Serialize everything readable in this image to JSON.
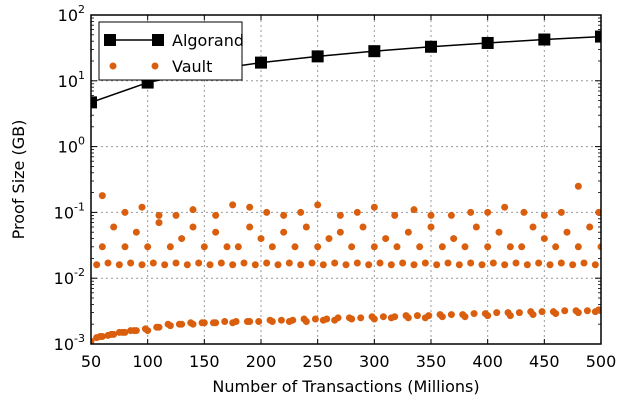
{
  "chart_data": {
    "type": "scatter",
    "xlabel": "Number of Transactions (Millions)",
    "ylabel": "Proof Size (GB)",
    "xlim": [
      50,
      500
    ],
    "ylim": [
      0.001,
      100
    ],
    "yscale": "log",
    "grid": true,
    "legend_position": "top-left",
    "x_ticks": [
      50,
      100,
      150,
      200,
      250,
      300,
      350,
      400,
      450,
      500
    ],
    "y_ticks": [
      {
        "value": 0.001,
        "base": "10",
        "exp": "-3"
      },
      {
        "value": 0.01,
        "base": "10",
        "exp": "-2"
      },
      {
        "value": 0.1,
        "base": "10",
        "exp": "-1"
      },
      {
        "value": 1,
        "base": "10",
        "exp": "0"
      },
      {
        "value": 10,
        "base": "10",
        "exp": "1"
      },
      {
        "value": 100,
        "base": "10",
        "exp": "2"
      }
    ],
    "series": [
      {
        "name": "Algorand",
        "style": "line-square",
        "color": "#000000",
        "x": [
          50,
          100,
          150,
          200,
          250,
          300,
          350,
          400,
          450,
          500
        ],
        "values": [
          4.7,
          9.4,
          14.2,
          18.9,
          23.5,
          28.2,
          32.9,
          37.6,
          42.4,
          47.0
        ]
      },
      {
        "name": "Vault",
        "style": "dots",
        "color": "#d95f0e",
        "x": [
          50,
          55,
          60,
          65,
          70,
          75,
          80,
          85,
          90,
          100,
          110,
          120,
          130,
          140,
          150,
          160,
          175,
          190,
          210,
          225,
          240,
          255,
          265,
          280,
          300,
          315,
          330,
          345,
          360,
          380,
          400,
          420,
          440,
          460,
          480,
          495,
          500,
          58,
          68,
          78,
          88,
          98,
          108,
          118,
          128,
          138,
          148,
          158,
          168,
          178,
          188,
          198,
          208,
          218,
          228,
          238,
          248,
          258,
          268,
          278,
          288,
          298,
          308,
          318,
          328,
          338,
          348,
          358,
          368,
          378,
          388,
          398,
          408,
          418,
          428,
          438,
          448,
          458,
          468,
          478,
          488,
          498,
          55,
          65,
          75,
          85,
          95,
          105,
          115,
          125,
          135,
          145,
          155,
          165,
          175,
          185,
          195,
          205,
          215,
          225,
          235,
          245,
          255,
          265,
          275,
          285,
          295,
          305,
          315,
          325,
          335,
          345,
          355,
          365,
          375,
          385,
          395,
          405,
          415,
          425,
          435,
          445,
          455,
          465,
          475,
          485,
          495,
          60,
          70,
          80,
          90,
          100,
          110,
          120,
          130,
          140,
          150,
          160,
          170,
          180,
          190,
          200,
          210,
          220,
          230,
          240,
          250,
          260,
          270,
          280,
          290,
          300,
          310,
          320,
          330,
          340,
          350,
          360,
          370,
          380,
          390,
          400,
          410,
          420,
          430,
          440,
          450,
          460,
          470,
          480,
          490,
          500,
          60,
          80,
          95,
          110,
          125,
          140,
          160,
          175,
          190,
          205,
          220,
          235,
          250,
          270,
          285,
          300,
          318,
          335,
          350,
          368,
          385,
          400,
          415,
          432,
          450,
          465,
          480,
          498
        ],
        "values": [
          0.0011,
          0.00125,
          0.0013,
          0.00135,
          0.0014,
          0.0015,
          0.0015,
          0.0016,
          0.0016,
          0.0016,
          0.0018,
          0.0019,
          0.002,
          0.002,
          0.0021,
          0.0021,
          0.0021,
          0.0022,
          0.0022,
          0.0022,
          0.0022,
          0.0023,
          0.0023,
          0.0024,
          0.0024,
          0.0025,
          0.0025,
          0.0025,
          0.0026,
          0.0026,
          0.0027,
          0.0027,
          0.0028,
          0.0029,
          0.003,
          0.0031,
          0.0032,
          0.0013,
          0.0014,
          0.0015,
          0.0016,
          0.0017,
          0.0018,
          0.002,
          0.002,
          0.0021,
          0.0021,
          0.0021,
          0.0022,
          0.0022,
          0.0022,
          0.0022,
          0.0023,
          0.0023,
          0.0023,
          0.0024,
          0.0024,
          0.0024,
          0.0025,
          0.0025,
          0.0025,
          0.0026,
          0.0026,
          0.0026,
          0.0027,
          0.0027,
          0.0027,
          0.0028,
          0.0028,
          0.0028,
          0.0029,
          0.0029,
          0.003,
          0.003,
          0.003,
          0.0031,
          0.0031,
          0.0031,
          0.0032,
          0.0032,
          0.0032,
          0.0033,
          0.016,
          0.017,
          0.016,
          0.017,
          0.016,
          0.017,
          0.016,
          0.017,
          0.016,
          0.017,
          0.016,
          0.017,
          0.016,
          0.017,
          0.016,
          0.017,
          0.016,
          0.017,
          0.016,
          0.017,
          0.016,
          0.017,
          0.016,
          0.017,
          0.016,
          0.017,
          0.016,
          0.017,
          0.016,
          0.017,
          0.016,
          0.017,
          0.016,
          0.017,
          0.016,
          0.017,
          0.016,
          0.017,
          0.016,
          0.017,
          0.016,
          0.017,
          0.016,
          0.017,
          0.016,
          0.03,
          0.06,
          0.03,
          0.05,
          0.03,
          0.07,
          0.03,
          0.04,
          0.06,
          0.03,
          0.05,
          0.03,
          0.03,
          0.06,
          0.04,
          0.03,
          0.05,
          0.03,
          0.06,
          0.03,
          0.04,
          0.05,
          0.03,
          0.06,
          0.03,
          0.04,
          0.03,
          0.05,
          0.03,
          0.06,
          0.03,
          0.04,
          0.03,
          0.06,
          0.03,
          0.05,
          0.03,
          0.03,
          0.06,
          0.04,
          0.03,
          0.05,
          0.03,
          0.06,
          0.03,
          0.18,
          0.1,
          0.12,
          0.09,
          0.09,
          0.11,
          0.09,
          0.13,
          0.12,
          0.1,
          0.09,
          0.1,
          0.13,
          0.09,
          0.1,
          0.12,
          0.09,
          0.11,
          0.09,
          0.09,
          0.1,
          0.1,
          0.12,
          0.1,
          0.09,
          0.1,
          0.25,
          0.1
        ]
      }
    ]
  }
}
